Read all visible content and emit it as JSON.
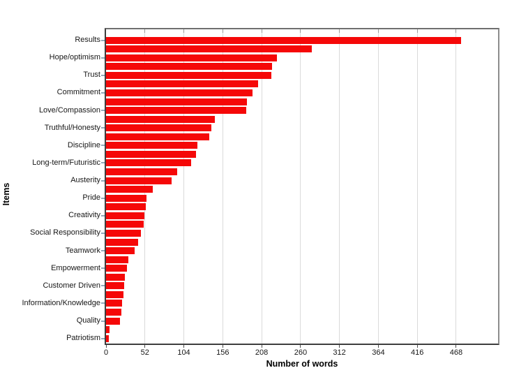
{
  "chart_data": {
    "type": "bar",
    "orientation": "horizontal",
    "title": "",
    "xlabel": "Number of words",
    "ylabel": "Items",
    "x_ticks": [
      0,
      52,
      104,
      156,
      208,
      260,
      312,
      364,
      416,
      468
    ],
    "xlim": [
      0,
      524
    ],
    "grid": "vertical light gray gridlines at each x tick",
    "legend": false,
    "bar_color": "#f50808",
    "grid_color": "#dadada",
    "axis_tick_color": "#93a9ba",
    "labeling_note": "only every second bar carries a category label",
    "items": [
      {
        "label": "Results",
        "value": 475
      },
      {
        "label": "",
        "value": 275
      },
      {
        "label": "Hope/optimism",
        "value": 228
      },
      {
        "label": "",
        "value": 222
      },
      {
        "label": "Trust",
        "value": 221
      },
      {
        "label": "",
        "value": 203
      },
      {
        "label": "Commitment",
        "value": 196
      },
      {
        "label": "",
        "value": 188
      },
      {
        "label": "Love/Compassion",
        "value": 187
      },
      {
        "label": "",
        "value": 145
      },
      {
        "label": "Truthful/Honesty",
        "value": 141
      },
      {
        "label": "",
        "value": 138
      },
      {
        "label": "Discipline",
        "value": 122
      },
      {
        "label": "",
        "value": 120
      },
      {
        "label": "Long-term/Futuristic",
        "value": 114
      },
      {
        "label": "",
        "value": 95
      },
      {
        "label": "Austerity",
        "value": 88
      },
      {
        "label": "",
        "value": 62
      },
      {
        "label": "Pride",
        "value": 54
      },
      {
        "label": "",
        "value": 53
      },
      {
        "label": "Creativity",
        "value": 51
      },
      {
        "label": "",
        "value": 50
      },
      {
        "label": "Social Responsibility",
        "value": 47
      },
      {
        "label": "",
        "value": 43
      },
      {
        "label": "Teamwork",
        "value": 38
      },
      {
        "label": "",
        "value": 30
      },
      {
        "label": "Empowerment",
        "value": 28
      },
      {
        "label": "",
        "value": 25
      },
      {
        "label": "Customer Driven",
        "value": 24
      },
      {
        "label": "",
        "value": 23
      },
      {
        "label": "Information/Knowledge",
        "value": 21
      },
      {
        "label": "",
        "value": 20
      },
      {
        "label": "Quality",
        "value": 19
      },
      {
        "label": "",
        "value": 5
      },
      {
        "label": "Patriotism",
        "value": 4
      }
    ]
  }
}
